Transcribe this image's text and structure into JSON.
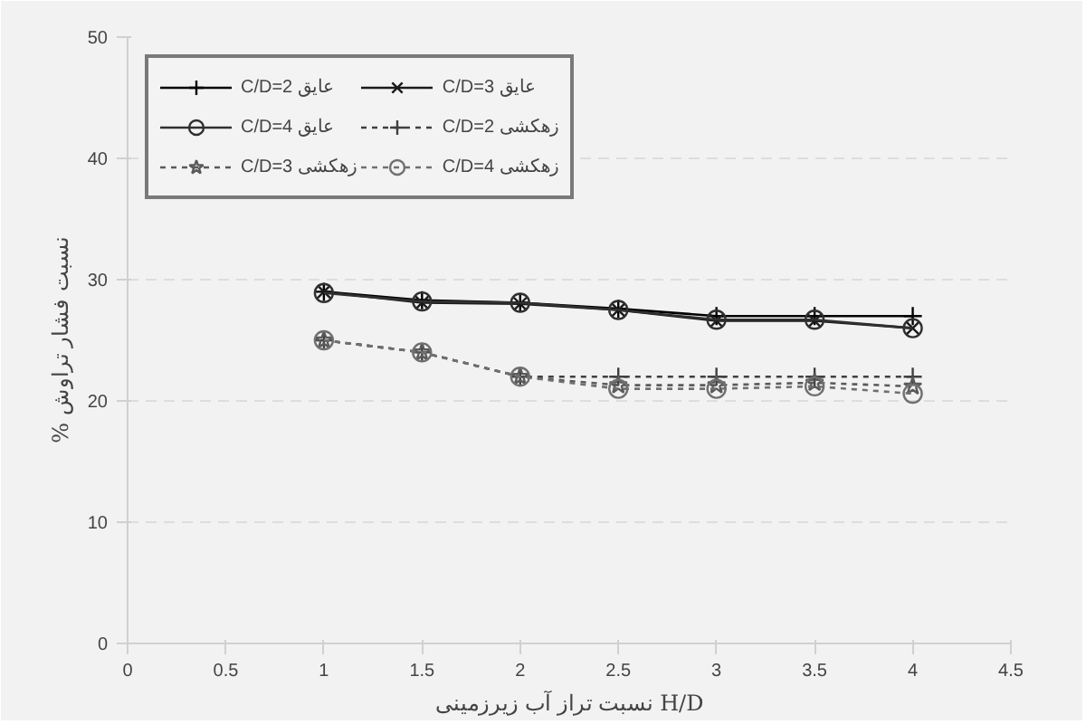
{
  "chart_data": {
    "type": "line",
    "xlabel": "نسبت تراز آب زیرزمینی H/D",
    "ylabel": "% نسبت فشار تراوش",
    "x": [
      1,
      1.5,
      2,
      2.5,
      3,
      3.5,
      4
    ],
    "xlim": [
      0,
      4.5
    ],
    "xticks": [
      0,
      0.5,
      1,
      1.5,
      2,
      2.5,
      3,
      3.5,
      4,
      4.5
    ],
    "ylim": [
      0,
      50
    ],
    "yticks": [
      0,
      10,
      20,
      30,
      40,
      50
    ],
    "grid": "y",
    "legend": "top left",
    "series": [
      {
        "name": "C/D=2 عایق",
        "color": "#000000",
        "marker": "cross",
        "line_style": "solid",
        "values": [
          29,
          28.3,
          28.1,
          27.6,
          27,
          27,
          27
        ]
      },
      {
        "name": "C/D=3 عایق",
        "color": "#1a1a1a",
        "marker": "x",
        "line_style": "solid",
        "values": [
          29,
          28.1,
          28,
          27.5,
          26.6,
          26.6,
          26
        ]
      },
      {
        "name": "C/D=4 عایق",
        "color": "#303030",
        "marker": "circle",
        "line_style": "solid",
        "values": [
          28.9,
          28.2,
          28.1,
          27.5,
          26.7,
          26.7,
          26
        ]
      },
      {
        "name": "C/D=2 زهکشی",
        "color": "#404040",
        "marker": "cross",
        "line_style": "dotted",
        "values": [
          25,
          24,
          22,
          22,
          22,
          22,
          22
        ]
      },
      {
        "name": "C/D=3 زهکشی",
        "color": "#5a5a5a",
        "marker": "star",
        "line_style": "dotted",
        "values": [
          25,
          24,
          22,
          21.3,
          21.3,
          21.5,
          21.2
        ]
      },
      {
        "name": "C/D=4 زهکشی",
        "color": "#707070",
        "marker": "circle",
        "line_style": "dotted",
        "values": [
          25,
          24,
          22,
          21,
          21,
          21.2,
          20.6
        ]
      }
    ]
  }
}
